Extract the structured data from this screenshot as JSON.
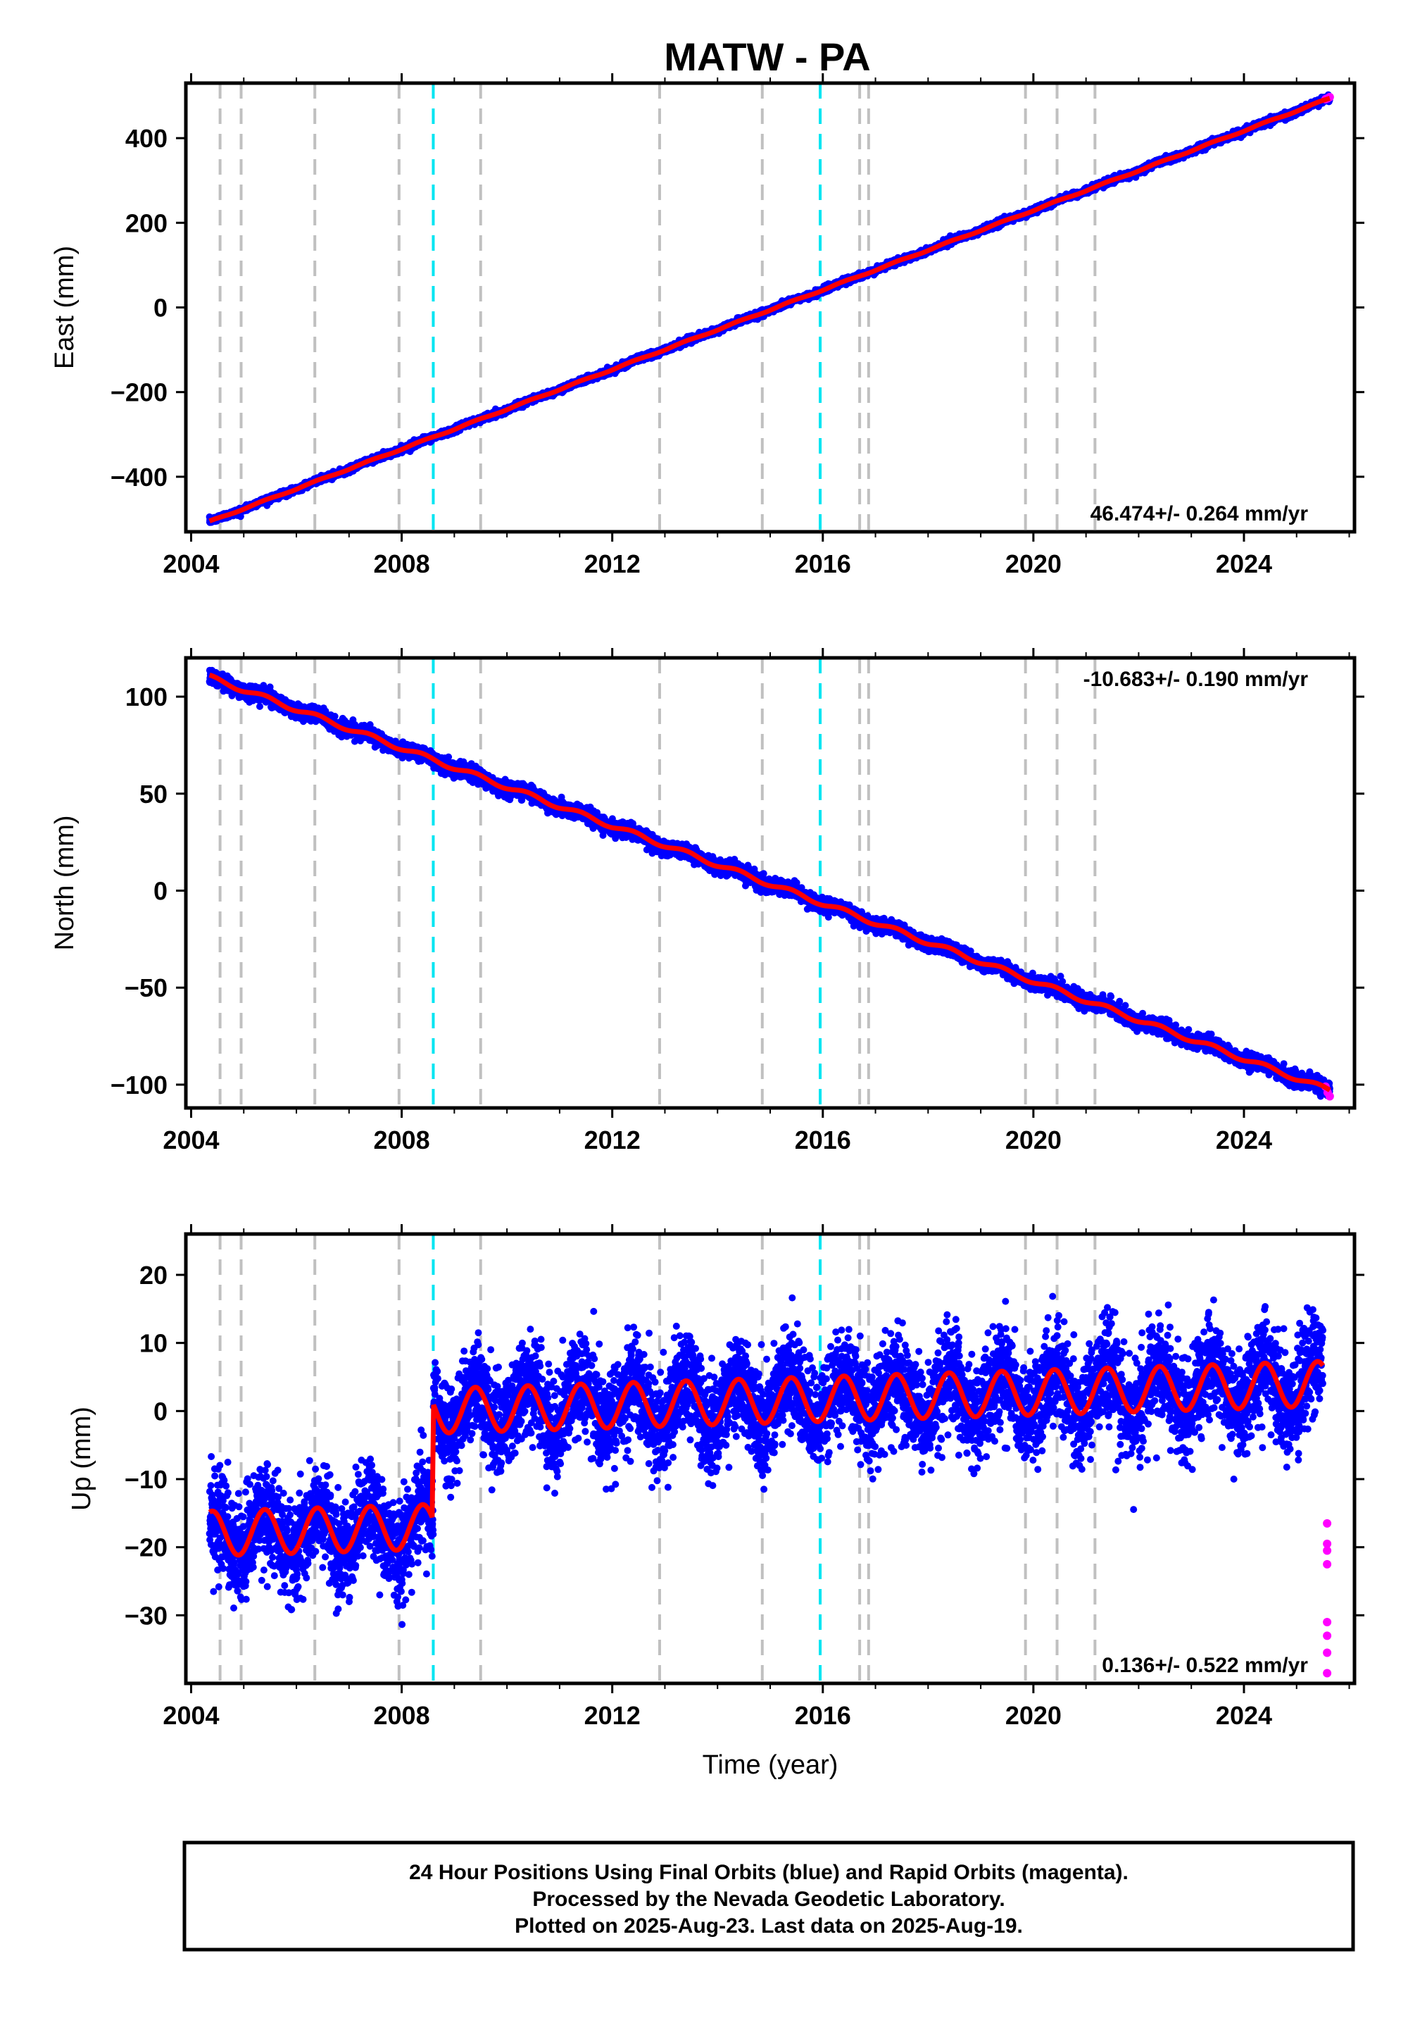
{
  "figure_title": "MATW - PA",
  "colors": {
    "final": "#0000ff",
    "rapid": "#ff00ff",
    "model": "#ff0000",
    "event_gray": "#c0c0c0",
    "event_cyan": "#00e5f2"
  },
  "footer": {
    "line1": "24 Hour Positions Using Final Orbits (blue) and Rapid Orbits (magenta).",
    "line2": "Processed by the Nevada Geodetic Laboratory.",
    "line3": "Plotted on 2025-Aug-23. Last data on 2025-Aug-19."
  },
  "chart_data": [
    {
      "type": "scatter",
      "component": "East",
      "ylabel": "East (mm)",
      "xlabel": "",
      "xlim": [
        2003.9,
        2026.1
      ],
      "ylim": [
        -530,
        530
      ],
      "xticks": [
        2004,
        2008,
        2012,
        2016,
        2020,
        2024
      ],
      "yticks": [
        -400,
        -200,
        0,
        200,
        400
      ],
      "rate_text": "46.474+/- 0.264 mm/yr",
      "rate_position": "bottom-right",
      "velocity_mm_per_yr": 46.474,
      "x_start": 2004.35,
      "x_end": 2025.63,
      "y_start": -506,
      "y_end": 494,
      "scatter_sd": 3.5,
      "seasonal_amplitude": 1.5,
      "offset_at_2008_6": 0,
      "rapid_points": [
        {
          "x": 2025.55,
          "y": 492
        },
        {
          "x": 2025.59,
          "y": 494
        },
        {
          "x": 2025.63,
          "y": 497
        }
      ]
    },
    {
      "type": "scatter",
      "component": "North",
      "ylabel": "North (mm)",
      "xlabel": "",
      "xlim": [
        2003.9,
        2026.1
      ],
      "ylim": [
        -112,
        120
      ],
      "xticks": [
        2004,
        2008,
        2012,
        2016,
        2020,
        2024
      ],
      "yticks": [
        -100,
        -50,
        0,
        50,
        100
      ],
      "rate_text": "-10.683+/- 0.190 mm/yr",
      "rate_position": "top-right",
      "velocity_mm_per_yr": -10.683,
      "x_start": 2004.35,
      "x_end": 2025.63,
      "y_start": 110,
      "y_end": -103,
      "scatter_sd": 1.8,
      "seasonal_amplitude": 1.2,
      "offset_at_2008_6": 0,
      "rapid_points": [
        {
          "x": 2025.55,
          "y": -101
        },
        {
          "x": 2025.59,
          "y": -104
        },
        {
          "x": 2025.63,
          "y": -106
        }
      ]
    },
    {
      "type": "scatter",
      "component": "Up",
      "ylabel": "Up (mm)",
      "xlabel": "Time (year)",
      "xlim": [
        2003.9,
        2026.1
      ],
      "ylim": [
        -40,
        26
      ],
      "xticks": [
        2004,
        2008,
        2012,
        2016,
        2020,
        2024
      ],
      "yticks": [
        -30,
        -20,
        -10,
        0,
        10,
        20
      ],
      "rate_text": "0.136+/- 0.522 mm/yr",
      "rate_position": "bottom-right",
      "velocity_mm_per_yr": 0.136,
      "x_start": 2004.35,
      "x_end": 2025.5,
      "y_start": -18,
      "y_end": 4,
      "scatter_sd": 3.6,
      "seasonal_amplitude": 3.3,
      "offset_at_2008_6": 17,
      "rapid_points": [
        {
          "x": 2025.58,
          "y": -16.5
        },
        {
          "x": 2025.58,
          "y": -19.5
        },
        {
          "x": 2025.58,
          "y": -20.5
        },
        {
          "x": 2025.58,
          "y": -22.5
        },
        {
          "x": 2025.58,
          "y": -31
        },
        {
          "x": 2025.58,
          "y": -33
        },
        {
          "x": 2025.58,
          "y": -35.5
        },
        {
          "x": 2025.58,
          "y": -38.5
        }
      ]
    }
  ],
  "event_lines": {
    "gray": [
      2004.55,
      2004.95,
      2006.35,
      2007.95,
      2009.5,
      2012.9,
      2014.85,
      2016.7,
      2016.87,
      2019.85,
      2020.45,
      2021.17
    ],
    "cyan": [
      2008.6,
      2015.95
    ]
  }
}
